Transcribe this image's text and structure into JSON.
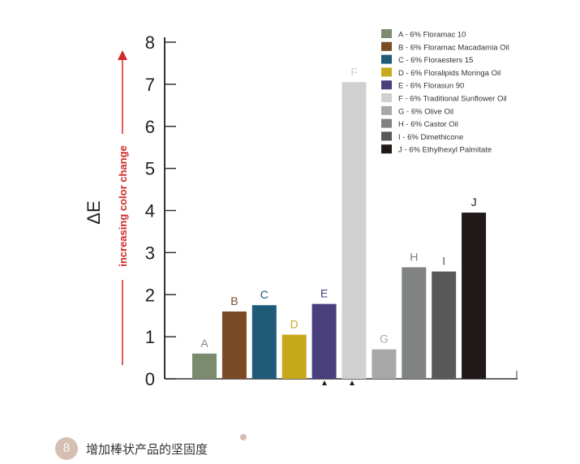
{
  "chart_data": {
    "type": "bar",
    "categories": [
      "A",
      "B",
      "C",
      "D",
      "E",
      "F",
      "G",
      "H",
      "I",
      "J"
    ],
    "values": [
      0.6,
      1.6,
      1.75,
      1.05,
      1.78,
      7.05,
      0.7,
      2.65,
      2.55,
      3.95
    ],
    "colors": [
      "#7a8c6d",
      "#7a4b24",
      "#1f5a78",
      "#c9a91c",
      "#4a3f7d",
      "#d0d0d0",
      "#a8a8a8",
      "#808284",
      "#58585a",
      "#1f1a17"
    ],
    "label_colors": [
      "#8a8a8a",
      "#7a4b24",
      "#1f5a78",
      "#c9a91c",
      "#4a3f7d",
      "#d0d0d0",
      "#a8a8a8",
      "#808284",
      "#58585a",
      "#1f1a17"
    ],
    "ylabel": "ΔE",
    "arrow_label": "increasing color change",
    "ylim": [
      0,
      8
    ],
    "yticks": [
      "0",
      "1",
      "2",
      "3",
      "4",
      "5",
      "6",
      "7",
      "8"
    ],
    "legend": [
      "A - 6% Floramac 10",
      "B - 6% Floramac Macadamia Oil",
      "C - 6% Floraesters 15",
      "D - 6% Floralipids Moringa Oil",
      "E - 6% Florasun 90",
      "F - 6% Traditional Sunflower Oil",
      "G - 6% Olive Oil",
      "H - 6% Castor Oil",
      "I - 6% Dimethicone",
      "J - 6% Ethylhexyl Palmitate"
    ],
    "legend_placement": "top-right",
    "grid": false
  },
  "footer": {
    "badge_number": "8",
    "caption": "增加棒状产品的坚固度"
  }
}
